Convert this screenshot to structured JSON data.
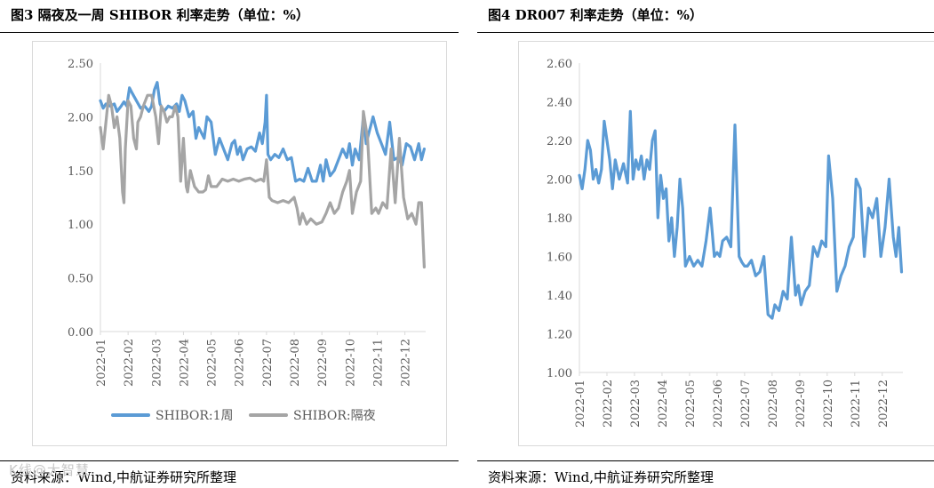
{
  "watermark": "K线@大智慧",
  "charts": [
    {
      "title": "图3  隔夜及一周 SHIBOR 利率走势（单位：%）",
      "source": "资料来源：Wind,中航证券研究所整理",
      "chart_data": {
        "type": "line",
        "ylim": [
          0,
          2.5
        ],
        "y_ticks": [
          "2.50",
          "2.00",
          "1.50",
          "1.00",
          "0.50",
          "0.00"
        ],
        "x_ticks": [
          "2022-01",
          "2022-02",
          "2022-03",
          "2022-04",
          "2022-05",
          "2022-06",
          "2022-07",
          "2022-08",
          "2022-09",
          "2022-10",
          "2022-11",
          "2022-12"
        ],
        "x_range_months": [
          0,
          11.75
        ],
        "grid": false,
        "legend": "bottom",
        "series": [
          {
            "name": "SHIBOR:1周",
            "color": "#5b9bd5",
            "t": [
              0.0,
              0.1,
              0.2,
              0.35,
              0.5,
              0.6,
              0.75,
              0.85,
              0.95,
              1.05,
              1.15,
              1.3,
              1.45,
              1.6,
              1.75,
              1.85,
              1.95,
              2.05,
              2.15,
              2.3,
              2.45,
              2.6,
              2.75,
              2.85,
              2.95,
              3.05,
              3.2,
              3.35,
              3.45,
              3.55,
              3.65,
              3.75,
              3.85,
              4.0,
              4.15,
              4.3,
              4.45,
              4.6,
              4.75,
              4.85,
              4.95,
              5.05,
              5.15,
              5.3,
              5.45,
              5.6,
              5.75,
              5.85,
              5.95,
              6.0,
              6.05,
              6.15,
              6.3,
              6.45,
              6.6,
              6.75,
              6.9,
              7.05,
              7.2,
              7.35,
              7.5,
              7.65,
              7.8,
              7.95,
              8.05,
              8.15,
              8.3,
              8.45,
              8.6,
              8.75,
              8.9,
              9.0,
              9.1,
              9.2,
              9.35,
              9.5,
              9.6,
              9.7,
              9.85,
              10.0,
              10.15,
              10.3,
              10.45,
              10.6,
              10.75,
              10.9,
              11.05,
              11.2,
              11.35,
              11.5,
              11.6,
              11.7
            ],
            "v": [
              2.15,
              2.08,
              2.12,
              2.1,
              2.12,
              2.05,
              2.1,
              2.14,
              2.1,
              2.27,
              2.22,
              2.15,
              2.08,
              2.1,
              2.05,
              2.1,
              2.25,
              2.32,
              2.12,
              2.05,
              2.1,
              2.08,
              2.12,
              2.05,
              2.2,
              2.15,
              2.0,
              2.05,
              1.8,
              1.9,
              1.85,
              1.8,
              2.0,
              1.95,
              1.65,
              1.8,
              1.7,
              1.6,
              1.75,
              1.78,
              1.65,
              1.72,
              1.6,
              1.7,
              1.72,
              1.68,
              1.85,
              1.75,
              1.95,
              2.2,
              1.65,
              1.6,
              1.65,
              1.62,
              1.7,
              1.6,
              1.62,
              1.4,
              1.42,
              1.4,
              1.52,
              1.4,
              1.4,
              1.55,
              1.4,
              1.6,
              1.45,
              1.5,
              1.6,
              1.7,
              1.62,
              1.75,
              1.55,
              1.7,
              1.6,
              2.0,
              1.75,
              1.85,
              2.0,
              1.85,
              1.75,
              1.65,
              1.95,
              1.6,
              1.62,
              1.55,
              1.75,
              1.72,
              1.6,
              1.75,
              1.6,
              1.7
            ]
          },
          {
            "name": "SHIBOR:隔夜",
            "color": "#a5a5a5",
            "t": [
              0.0,
              0.1,
              0.2,
              0.3,
              0.4,
              0.5,
              0.6,
              0.7,
              0.8,
              0.85,
              0.9,
              1.0,
              1.1,
              1.2,
              1.3,
              1.35,
              1.45,
              1.55,
              1.7,
              1.85,
              2.0,
              2.1,
              2.2,
              2.3,
              2.4,
              2.5,
              2.6,
              2.7,
              2.8,
              2.9,
              3.0,
              3.1,
              3.15,
              3.25,
              3.4,
              3.55,
              3.7,
              3.8,
              3.9,
              4.0,
              4.2,
              4.4,
              4.6,
              4.8,
              5.0,
              5.2,
              5.4,
              5.6,
              5.8,
              5.9,
              6.0,
              6.1,
              6.2,
              6.4,
              6.6,
              6.8,
              7.0,
              7.1,
              7.2,
              7.3,
              7.45,
              7.6,
              7.8,
              8.0,
              8.15,
              8.3,
              8.45,
              8.6,
              8.75,
              8.9,
              9.0,
              9.1,
              9.25,
              9.4,
              9.5,
              9.65,
              9.8,
              9.95,
              10.05,
              10.2,
              10.35,
              10.5,
              10.65,
              10.8,
              10.95,
              11.1,
              11.25,
              11.4,
              11.5,
              11.6,
              11.7
            ],
            "v": [
              1.9,
              1.7,
              1.95,
              2.2,
              2.1,
              1.9,
              2.0,
              1.8,
              1.3,
              1.2,
              1.7,
              2.15,
              2.1,
              1.8,
              1.7,
              1.95,
              2.0,
              2.1,
              2.2,
              2.2,
              2.0,
              1.75,
              2.1,
              2.05,
              1.95,
              2.0,
              2.0,
              2.1,
              2.0,
              1.4,
              1.8,
              1.35,
              1.3,
              1.5,
              1.35,
              1.3,
              1.3,
              1.32,
              1.45,
              1.35,
              1.35,
              1.42,
              1.4,
              1.42,
              1.4,
              1.42,
              1.43,
              1.4,
              1.42,
              1.4,
              1.6,
              1.25,
              1.22,
              1.2,
              1.22,
              1.2,
              1.25,
              1.15,
              1.0,
              1.1,
              1.0,
              1.05,
              1.0,
              1.02,
              1.1,
              1.2,
              1.1,
              1.15,
              1.3,
              1.4,
              1.5,
              1.1,
              1.3,
              1.4,
              2.05,
              1.8,
              1.1,
              1.15,
              1.1,
              1.2,
              1.15,
              1.7,
              1.2,
              1.8,
              1.25,
              1.05,
              1.1,
              1.0,
              1.2,
              1.2,
              0.6
            ]
          }
        ]
      }
    },
    {
      "title": "图4  DR007 利率走势（单位：%）",
      "source": "资料来源：Wind,中航证券研究所整理",
      "chart_data": {
        "type": "line",
        "ylim": [
          1.0,
          2.6
        ],
        "y_ticks": [
          "2.60",
          "2.40",
          "2.20",
          "2.00",
          "1.80",
          "1.60",
          "1.40",
          "1.20",
          "1.00"
        ],
        "x_ticks": [
          "2022-01",
          "2022-02",
          "2022-03",
          "2022-04",
          "2022-05",
          "2022-06",
          "2022-07",
          "2022-08",
          "2022-09",
          "2022-10",
          "2022-11",
          "2022-12"
        ],
        "x_range_months": [
          0,
          11.75
        ],
        "grid": false,
        "legend": "none",
        "series": [
          {
            "color": "#5b9bd5",
            "t": [
              0.0,
              0.1,
              0.2,
              0.3,
              0.4,
              0.5,
              0.6,
              0.7,
              0.8,
              0.9,
              1.0,
              1.1,
              1.2,
              1.3,
              1.45,
              1.6,
              1.75,
              1.85,
              1.95,
              2.05,
              2.15,
              2.25,
              2.35,
              2.45,
              2.55,
              2.65,
              2.75,
              2.85,
              2.95,
              3.05,
              3.15,
              3.25,
              3.35,
              3.45,
              3.55,
              3.65,
              3.75,
              3.85,
              4.0,
              4.15,
              4.3,
              4.45,
              4.6,
              4.75,
              4.9,
              5.0,
              5.1,
              5.2,
              5.35,
              5.5,
              5.65,
              5.8,
              5.9,
              6.0,
              6.1,
              6.25,
              6.4,
              6.55,
              6.7,
              6.85,
              7.0,
              7.1,
              7.25,
              7.4,
              7.55,
              7.7,
              7.85,
              7.95,
              8.05,
              8.2,
              8.35,
              8.5,
              8.65,
              8.8,
              8.95,
              9.05,
              9.2,
              9.35,
              9.5,
              9.65,
              9.8,
              9.95,
              10.05,
              10.2,
              10.35,
              10.5,
              10.65,
              10.8,
              10.95,
              11.1,
              11.25,
              11.4,
              11.5,
              11.6,
              11.7
            ],
            "v": [
              2.02,
              1.95,
              2.05,
              2.2,
              2.15,
              2.0,
              2.05,
              1.98,
              2.05,
              2.3,
              2.2,
              2.1,
              1.95,
              2.1,
              2.0,
              2.08,
              1.98,
              2.35,
              2.0,
              2.1,
              2.05,
              2.12,
              2.0,
              2.1,
              2.05,
              2.2,
              2.25,
              1.8,
              2.02,
              1.9,
              1.95,
              1.68,
              1.8,
              1.6,
              1.75,
              2.0,
              1.85,
              1.55,
              1.6,
              1.55,
              1.58,
              1.55,
              1.68,
              1.85,
              1.6,
              1.62,
              1.6,
              1.68,
              1.7,
              1.65,
              2.28,
              1.6,
              1.57,
              1.55,
              1.55,
              1.58,
              1.5,
              1.52,
              1.6,
              1.3,
              1.28,
              1.35,
              1.32,
              1.42,
              1.38,
              1.7,
              1.4,
              1.45,
              1.35,
              1.42,
              1.45,
              1.65,
              1.6,
              1.68,
              1.65,
              2.12,
              1.9,
              1.42,
              1.5,
              1.55,
              1.65,
              1.7,
              2.0,
              1.95,
              1.6,
              1.85,
              1.8,
              1.9,
              1.6,
              1.75,
              2.0,
              1.7,
              1.6,
              1.75,
              1.52
            ]
          }
        ]
      }
    }
  ]
}
